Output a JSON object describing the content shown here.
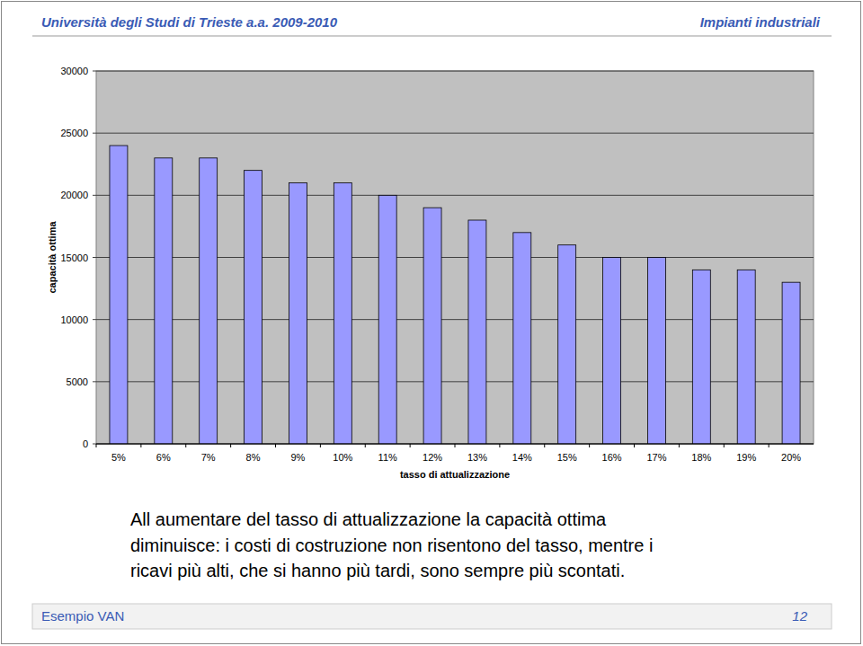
{
  "header": {
    "left": "Università degli Studi di Trieste a.a. 2009-2010",
    "right": "Impianti industriali"
  },
  "chart_data": {
    "type": "bar",
    "x_label": "tasso di attualizzazione",
    "y_label": "capacità ottima",
    "categories": [
      "5%",
      "6%",
      "7%",
      "8%",
      "9%",
      "10%",
      "11%",
      "12%",
      "13%",
      "14%",
      "15%",
      "16%",
      "17%",
      "18%",
      "19%",
      "20%"
    ],
    "values": [
      24000,
      23000,
      23000,
      22000,
      21000,
      21000,
      20000,
      19000,
      18000,
      17000,
      16000,
      15000,
      15000,
      14000,
      14000,
      13000
    ],
    "color": "#9999ff",
    "ylim": [
      0,
      30000
    ],
    "yticks": [
      0,
      5000,
      10000,
      15000,
      20000,
      25000,
      30000
    ],
    "grid": true
  },
  "body": {
    "lines": [
      "All aumentare del tasso di attualizzazione la capacità ottima",
      "diminuisce: i costi di costruzione non risentono del tasso, mentre i",
      "ricavi più alti, che si hanno più tardi, sono sempre più scontati."
    ]
  },
  "footer": {
    "left": "Esempio VAN",
    "right": "12"
  }
}
